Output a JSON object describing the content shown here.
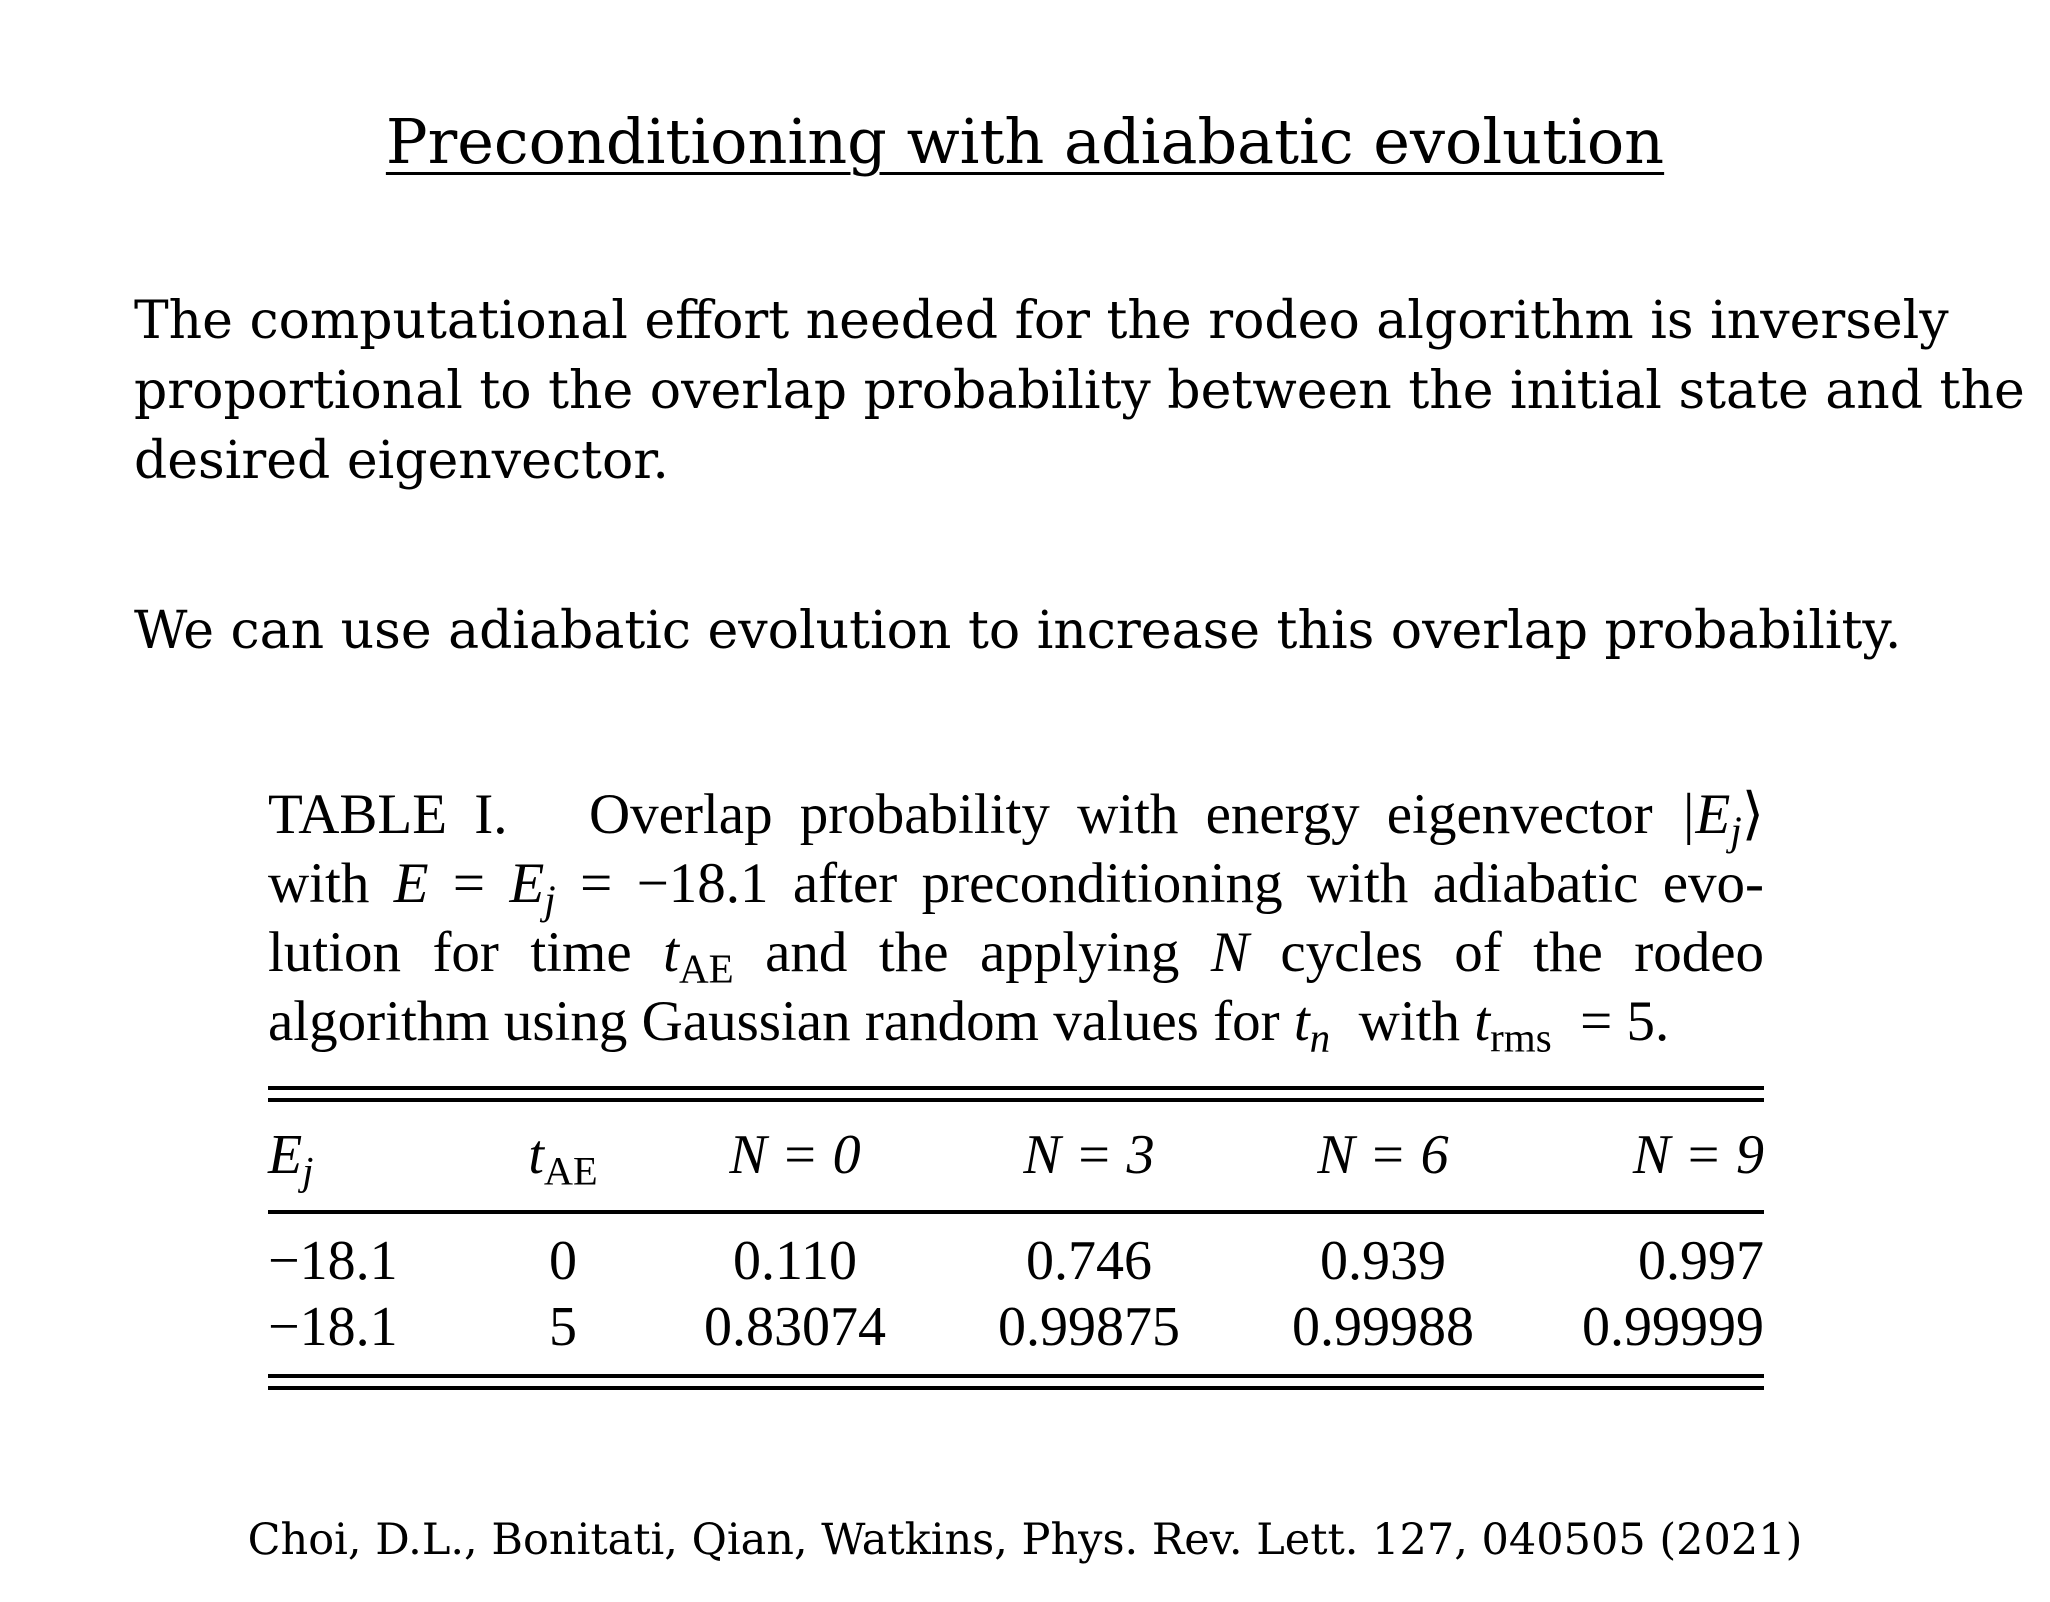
{
  "title": "Preconditioning with adiabatic evolution",
  "paragraphs": [
    "The computational effort needed for the rodeo algorithm is inversely proportional to the overlap probability between the initial state and the desired eigenvector.",
    "We can use adiabatic evolution to increase this overlap probability."
  ],
  "paragraph1_lines": [
    "The computational effort needed for the rodeo algorithm is inversely",
    "proportional to the overlap probability between the initial state and the",
    "desired eigenvector."
  ],
  "table": {
    "caption": {
      "label": "TABLE I.",
      "text_1": "Overlap probability with energy eigenvector",
      "ket": "|E",
      "ket_sub": "j",
      "ket_close": "⟩",
      "text_2": "with",
      "eq_E": "E",
      "eq_equals_1": "=",
      "eq_Ej": "E",
      "eq_Ej_sub": "j",
      "eq_equals_2": "=",
      "eq_value": "−18.1",
      "text_3": "after preconditioning with adiabatic evo-",
      "text_4": "lution for time",
      "tAE": "t",
      "tAE_sub": "AE",
      "text_5": "and the applying",
      "N": "N",
      "text_6": "cycles of the rodeo",
      "text_7": "algorithm using Gaussian random values for",
      "tn": "t",
      "tn_sub": "n",
      "text_8": "with",
      "trms": "t",
      "trms_sub": "rms",
      "text_9": "= 5."
    },
    "headers": [
      {
        "main": "E",
        "sub": "j"
      },
      {
        "main": "t",
        "sub": "AE"
      },
      {
        "main": "N = 0",
        "sub": ""
      },
      {
        "main": "N = 3",
        "sub": ""
      },
      {
        "main": "N = 6",
        "sub": ""
      },
      {
        "main": "N = 9",
        "sub": ""
      }
    ],
    "rows": [
      [
        "−18.1",
        "0",
        "0.110",
        "0.746",
        "0.939",
        "0.997"
      ],
      [
        "−18.1",
        "5",
        "0.83074",
        "0.99875",
        "0.99988",
        "0.99999"
      ]
    ]
  },
  "citation": "Choi, D.L., Bonitati, Qian, Watkins, Phys. Rev. Lett. 127, 040505 (2021)"
}
